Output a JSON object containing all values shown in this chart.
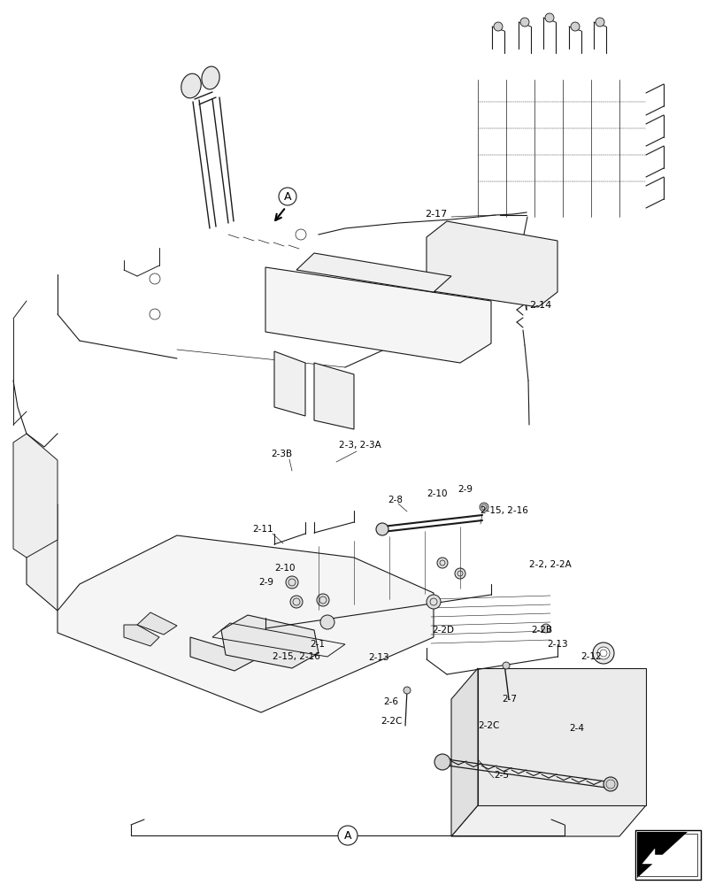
{
  "bg_color": "#ffffff",
  "line_color": "#1a1a1a",
  "fig_width": 8.08,
  "fig_height": 10.0,
  "labels": {
    "2-17": "2-17",
    "2-14": "2-14",
    "2-3B": "2-3B",
    "2-3_2-3A": "2-3, 2-3A",
    "2-8": "2-8",
    "2-10_top": "2-10",
    "2-9_top": "2-9",
    "2-15_2-16_top": "2-15, 2-16",
    "2-11": "2-11",
    "2-10_bot": "2-10",
    "2-9_bot": "2-9",
    "2-2_2-2A": "2-2, 2-2A",
    "2-1": "2-1",
    "2-15_2-16_bot": "2-15, 2-16",
    "2-13_left": "2-13",
    "2-2D": "2-2D",
    "2-2B_top": "2-2B",
    "2-2B_bot": "2-2B",
    "2-13_right": "2-13",
    "2-12": "2-12",
    "2-6": "2-6",
    "2-2C_left": "2-2C",
    "2-7": "2-7",
    "2-2C_right": "2-2C",
    "2-4": "2-4",
    "2-5": "2-5",
    "A_top": "A",
    "A_bottom": "A"
  }
}
